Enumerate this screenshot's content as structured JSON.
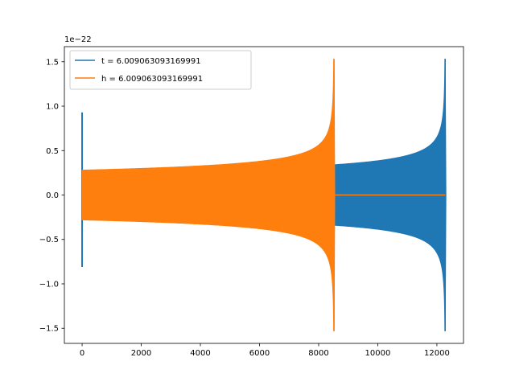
{
  "chart_data": {
    "type": "line",
    "title": "",
    "xlabel": "",
    "ylabel": "",
    "y_offset_label": "1e−22",
    "xlim": [
      -600,
      12900
    ],
    "ylim": [
      -1.67,
      1.67
    ],
    "x_ticks": [
      0,
      2000,
      4000,
      6000,
      8000,
      10000,
      12000
    ],
    "x_tick_labels": [
      "0",
      "2000",
      "4000",
      "6000",
      "8000",
      "10000",
      "12000"
    ],
    "y_ticks": [
      -1.5,
      -1.0,
      -0.5,
      0.0,
      0.5,
      1.0,
      1.5
    ],
    "y_tick_labels": [
      "−1.5",
      "−1.0",
      "−0.5",
      "0.0",
      "0.5",
      "1.0",
      "1.5"
    ],
    "grid": false,
    "legend_position": "upper-left",
    "series": [
      {
        "name": "t = 6.009063093169991",
        "color": "#1f77b4",
        "spike": {
          "x": 0,
          "y_max": 0.93,
          "y_min": -0.81
        },
        "chirp_start_x": 8500,
        "merger_x": 12280,
        "amplitude_at_start": 0.34,
        "peak_amplitude": 1.53,
        "ringdown_max": 1.27
      },
      {
        "name": "h = 6.009063093169991",
        "color": "#ff7f0e",
        "chirp_start_x": 0,
        "merger_x": 8520,
        "amplitude_at_start": 0.28,
        "peak_amplitude": 1.53,
        "tail_value": 0.0,
        "tail_end_x": 12280
      }
    ]
  }
}
